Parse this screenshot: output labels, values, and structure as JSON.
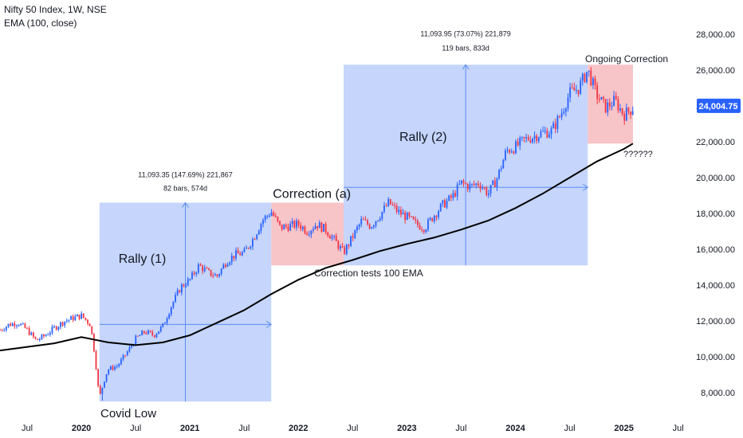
{
  "header": {
    "title": "Nifty 50 Index, 1W, NSE",
    "indicator": "EMA (100, close)"
  },
  "colors": {
    "up": "#2962ff",
    "down": "#f23645",
    "ema": "#000000",
    "rally_fill": "#c5d5fb",
    "correction_fill": "#f7c4c8",
    "last_price_bg": "#2962ff",
    "covid_text": "#f23645",
    "measure_line": "#5b8def"
  },
  "chart_data": {
    "type": "candlestick",
    "title": "Nifty 50 Index, 1W, NSE",
    "indicator": "EMA (100, close)",
    "x_axis": {
      "range": [
        "2019-04",
        "2025-07"
      ],
      "tick_labels": [
        {
          "label": "Jul",
          "date": "2019-07"
        },
        {
          "label": "2020",
          "date": "2020-01"
        },
        {
          "label": "Jul",
          "date": "2020-07"
        },
        {
          "label": "2021",
          "date": "2021-01"
        },
        {
          "label": "Jul",
          "date": "2021-07"
        },
        {
          "label": "2022",
          "date": "2022-01"
        },
        {
          "label": "Jul",
          "date": "2022-07"
        },
        {
          "label": "2023",
          "date": "2023-01"
        },
        {
          "label": "Jul",
          "date": "2023-07"
        },
        {
          "label": "2024",
          "date": "2024-01"
        },
        {
          "label": "Jul",
          "date": "2024-07"
        },
        {
          "label": "2025",
          "date": "2025-01"
        },
        {
          "label": "Jul",
          "date": "2025-07"
        }
      ]
    },
    "y_axis": {
      "range": [
        7000,
        28500
      ],
      "tick_labels": [
        "8,000.00",
        "10,000.00",
        "12,000.00",
        "14,000.00",
        "16,000.00",
        "18,000.00",
        "20,000.00",
        "22,000.00",
        "24,000.00",
        "26,000.00",
        "28,000.00"
      ],
      "tick_values": [
        8000,
        10000,
        12000,
        14000,
        16000,
        18000,
        20000,
        22000,
        24000,
        26000,
        28000
      ]
    },
    "last_price": {
      "label": "24,004.75",
      "value": 24004.75
    },
    "price_path": [
      [
        "2019-04",
        11500
      ],
      [
        "2019-05",
        11800
      ],
      [
        "2019-06",
        11900
      ],
      [
        "2019-07",
        11500
      ],
      [
        "2019-08",
        10900
      ],
      [
        "2019-09",
        11200
      ],
      [
        "2019-10",
        11600
      ],
      [
        "2019-11",
        11950
      ],
      [
        "2019-12",
        12150
      ],
      [
        "2020-01",
        12300
      ],
      [
        "2020-02",
        11800
      ],
      [
        "2020-03",
        8300
      ],
      [
        "2020-04",
        9300
      ],
      [
        "2020-05",
        9500
      ],
      [
        "2020-06",
        10200
      ],
      [
        "2020-07",
        11000
      ],
      [
        "2020-08",
        11400
      ],
      [
        "2020-09",
        11200
      ],
      [
        "2020-10",
        11700
      ],
      [
        "2020-11",
        12900
      ],
      [
        "2020-12",
        13900
      ],
      [
        "2021-01",
        14300
      ],
      [
        "2021-02",
        15100
      ],
      [
        "2021-03",
        14700
      ],
      [
        "2021-04",
        14500
      ],
      [
        "2021-05",
        15300
      ],
      [
        "2021-06",
        15700
      ],
      [
        "2021-07",
        15800
      ],
      [
        "2021-08",
        16600
      ],
      [
        "2021-09",
        17600
      ],
      [
        "2021-10",
        18100
      ],
      [
        "2021-11",
        17200
      ],
      [
        "2021-12",
        17300
      ],
      [
        "2022-01",
        17400
      ],
      [
        "2022-02",
        17000
      ],
      [
        "2022-03",
        17400
      ],
      [
        "2022-04",
        17100
      ],
      [
        "2022-05",
        16500
      ],
      [
        "2022-06",
        15800
      ],
      [
        "2022-07",
        16700
      ],
      [
        "2022-08",
        17600
      ],
      [
        "2022-09",
        17300
      ],
      [
        "2022-10",
        17900
      ],
      [
        "2022-11",
        18600
      ],
      [
        "2022-12",
        18100
      ],
      [
        "2023-01",
        17800
      ],
      [
        "2023-02",
        17400
      ],
      [
        "2023-03",
        17200
      ],
      [
        "2023-04",
        17900
      ],
      [
        "2023-05",
        18500
      ],
      [
        "2023-06",
        18900
      ],
      [
        "2023-07",
        19700
      ],
      [
        "2023-08",
        19500
      ],
      [
        "2023-09",
        19700
      ],
      [
        "2023-10",
        19100
      ],
      [
        "2023-11",
        20000
      ],
      [
        "2023-12",
        21500
      ],
      [
        "2024-01",
        21700
      ],
      [
        "2024-02",
        22100
      ],
      [
        "2024-03",
        22300
      ],
      [
        "2024-04",
        22500
      ],
      [
        "2024-05",
        22600
      ],
      [
        "2024-06",
        23500
      ],
      [
        "2024-07",
        24700
      ],
      [
        "2024-08",
        25000
      ],
      [
        "2024-09",
        26000
      ],
      [
        "2024-10",
        24600
      ],
      [
        "2024-11",
        23900
      ],
      [
        "2024-12",
        24300
      ],
      [
        "2025-01",
        23500
      ],
      [
        "2025-02",
        23900
      ]
    ],
    "ema_path": [
      [
        "2019-04",
        10350
      ],
      [
        "2019-07",
        10550
      ],
      [
        "2019-10",
        10750
      ],
      [
        "2020-01",
        11100
      ],
      [
        "2020-04",
        10800
      ],
      [
        "2020-07",
        10650
      ],
      [
        "2020-10",
        10800
      ],
      [
        "2021-01",
        11200
      ],
      [
        "2021-04",
        11900
      ],
      [
        "2021-07",
        12600
      ],
      [
        "2021-10",
        13500
      ],
      [
        "2022-01",
        14300
      ],
      [
        "2022-04",
        14950
      ],
      [
        "2022-07",
        15400
      ],
      [
        "2022-10",
        15900
      ],
      [
        "2023-01",
        16300
      ],
      [
        "2023-04",
        16650
      ],
      [
        "2023-07",
        17100
      ],
      [
        "2023-10",
        17600
      ],
      [
        "2024-01",
        18300
      ],
      [
        "2024-04",
        19100
      ],
      [
        "2024-07",
        20000
      ],
      [
        "2024-10",
        20900
      ],
      [
        "2025-01",
        21600
      ],
      [
        "2025-02",
        21900
      ]
    ],
    "annotations": {
      "rally1": {
        "label": "Rally (1)",
        "start": "2020-03",
        "end": "2021-10",
        "low": 7500,
        "high": 18600,
        "stats_line1": "11,093.35 (147.69%) 221,867",
        "stats_line2": "82 bars, 574d"
      },
      "correction_a": {
        "label": "Correction (a)",
        "start": "2021-10",
        "end": "2022-06",
        "low": 15100,
        "high": 18600
      },
      "ema_test": {
        "label": "Correction tests 100 EMA"
      },
      "rally2": {
        "label": "Rally (2)",
        "start": "2022-06",
        "end": "2024-09",
        "low": 15100,
        "high": 26300,
        "stats_line1": "11,093.95 (73.07%) 221,879",
        "stats_line2": "119 bars, 833d"
      },
      "ongoing": {
        "label": "Ongoing Correction",
        "start": "2024-09",
        "end": "2025-02",
        "low": 21900,
        "high": 26300
      },
      "question": {
        "label": "??????"
      },
      "covid": {
        "label": "Covid Low"
      }
    }
  }
}
